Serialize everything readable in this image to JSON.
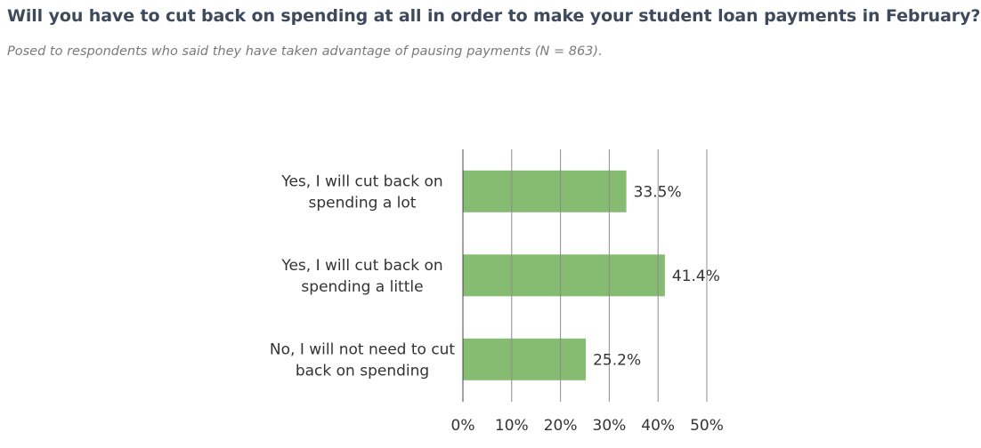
{
  "title": "Will you have to cut back on spending at all in order to make your student loan payments in February?",
  "subtitle": "Posed to respondents who said they have taken advantage of pausing payments (N = 863).",
  "chart_data": {
    "type": "bar",
    "orientation": "horizontal",
    "categories": [
      [
        "Yes, I will cut back on",
        "spending a lot"
      ],
      [
        "Yes, I will cut back on",
        "spending a little"
      ],
      [
        "No, I will not need to cut",
        "back on spending"
      ]
    ],
    "values": [
      33.5,
      41.4,
      25.2
    ],
    "data_labels": [
      "33.5%",
      "41.4%",
      "25.2%"
    ],
    "xlim": [
      0,
      50
    ],
    "ticks": [
      "0%",
      "10%",
      "20%",
      "30%",
      "40%",
      "50%"
    ],
    "grid": true,
    "color": "#86bb72"
  }
}
